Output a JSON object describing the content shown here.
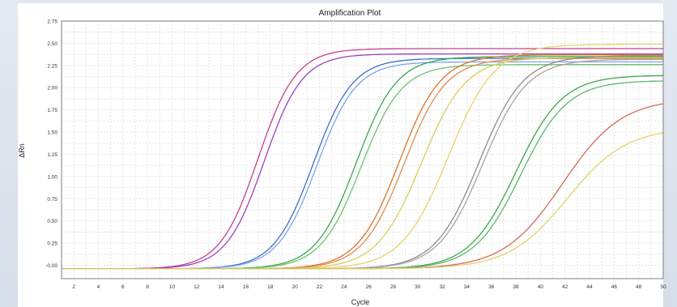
{
  "chart_data": {
    "type": "line",
    "title": "Amplification Plot",
    "xlabel": "Cycle",
    "ylabel": "ΔRn",
    "xlim": [
      1,
      50
    ],
    "ylim": [
      -0.15,
      2.75
    ],
    "xticks": [
      2,
      4,
      6,
      8,
      10,
      12,
      14,
      16,
      18,
      20,
      22,
      24,
      26,
      28,
      30,
      32,
      34,
      36,
      38,
      40,
      42,
      44,
      46,
      48,
      50
    ],
    "yticks": [
      "-0.00",
      "0.25",
      "0.50",
      "0.75",
      "1.00",
      "1.25",
      "1.50",
      "1.75",
      "2.00",
      "2.25",
      "2.50",
      "2.75"
    ],
    "grid": true,
    "series": [
      {
        "color": "#c2408f",
        "midpoint": 17.0,
        "slope": 1.55,
        "plateau": 2.44
      },
      {
        "color": "#9b3fc0",
        "midpoint": 17.5,
        "slope": 1.55,
        "plateau": 2.38
      },
      {
        "color": "#3f6fc9",
        "midpoint": 21.5,
        "slope": 1.6,
        "plateau": 2.33
      },
      {
        "color": "#7aa6e8",
        "midpoint": 21.8,
        "slope": 1.6,
        "plateau": 2.29
      },
      {
        "color": "#3aa84a",
        "midpoint": 25.0,
        "slope": 1.65,
        "plateau": 2.35
      },
      {
        "color": "#6cc36b",
        "midpoint": 25.4,
        "slope": 1.65,
        "plateau": 2.26
      },
      {
        "color": "#d9762b",
        "midpoint": 28.5,
        "slope": 1.7,
        "plateau": 2.37
      },
      {
        "color": "#e08a52",
        "midpoint": 28.9,
        "slope": 1.7,
        "plateau": 2.33
      },
      {
        "color": "#d8cf56",
        "midpoint": 30.3,
        "slope": 1.8,
        "plateau": 2.34
      },
      {
        "color": "#e6d36b",
        "midpoint": 32.5,
        "slope": 1.9,
        "plateau": 2.49
      },
      {
        "color": "#8d8d8d",
        "midpoint": 35.0,
        "slope": 1.8,
        "plateau": 2.36
      },
      {
        "color": "#b1a0a0",
        "midpoint": 35.3,
        "slope": 1.8,
        "plateau": 2.32
      },
      {
        "color": "#3aa84a",
        "midpoint": 38.0,
        "slope": 1.9,
        "plateau": 2.14
      },
      {
        "color": "#5bb96b",
        "midpoint": 38.4,
        "slope": 1.9,
        "plateau": 2.08
      },
      {
        "color": "#d16a5a",
        "midpoint": 41.8,
        "slope": 2.4,
        "plateau": 1.88
      },
      {
        "color": "#e2d36b",
        "midpoint": 42.2,
        "slope": 2.4,
        "plateau": 1.55
      }
    ]
  }
}
